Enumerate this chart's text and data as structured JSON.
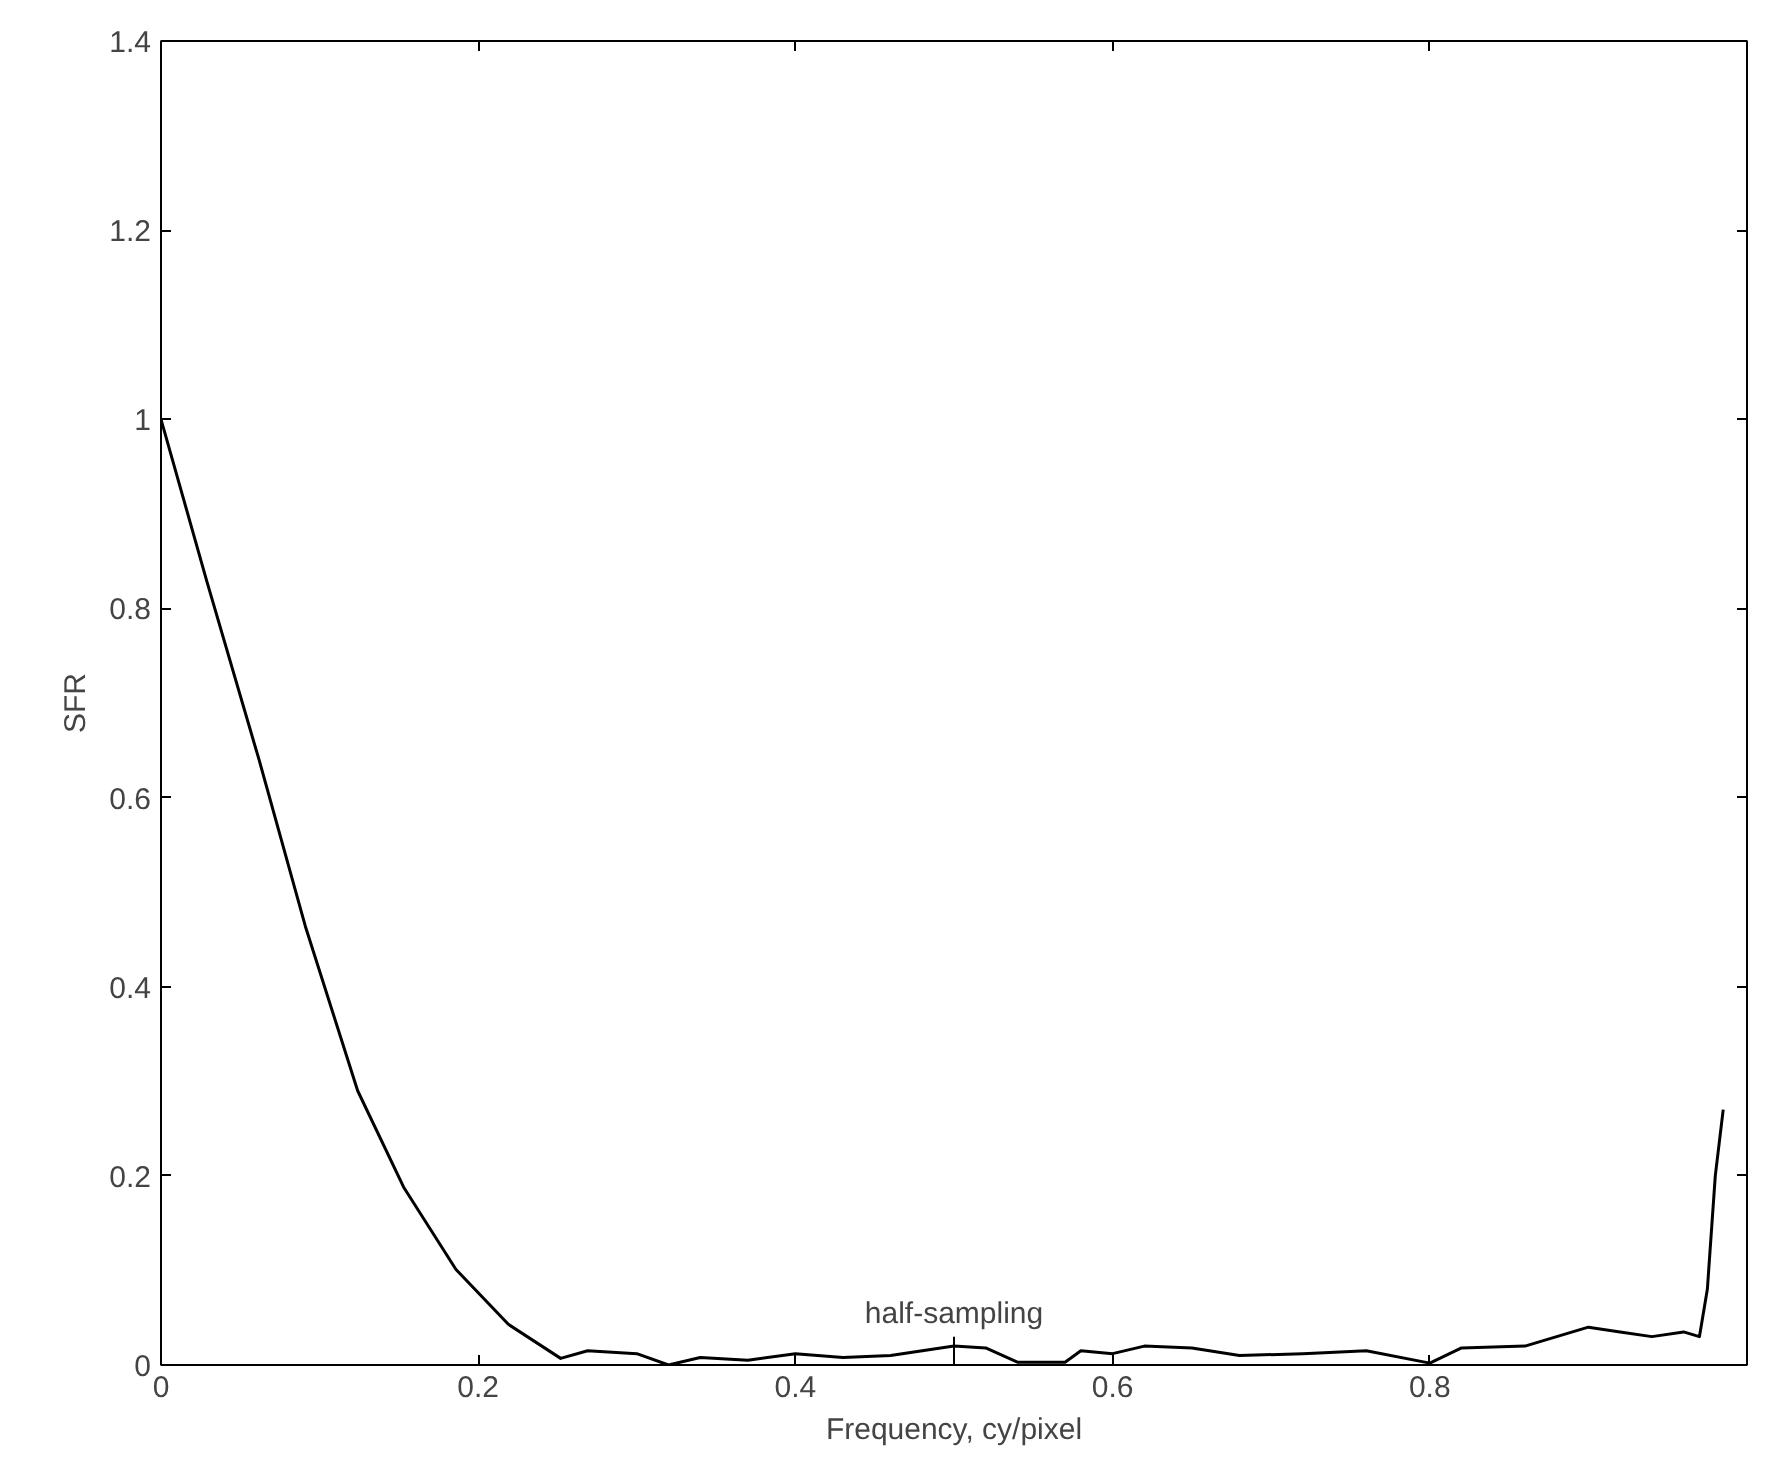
{
  "chart_data": {
    "type": "line",
    "xlabel": "Frequency, cy/pixel",
    "ylabel": "SFR",
    "xlim": [
      0,
      1
    ],
    "ylim": [
      0,
      1.4
    ],
    "xticks": [
      0,
      0.2,
      0.4,
      0.6,
      0.8,
      {
        "value": 1,
        "label": null
      }
    ],
    "yticks": [
      0,
      0.2,
      0.4,
      0.6,
      0.8,
      1,
      1.2,
      1.4
    ],
    "grid": false,
    "marker": "none",
    "line_style": "solid",
    "annotations": [
      {
        "text": "half-sampling",
        "x": 0.5,
        "y": 0.03
      }
    ],
    "series": [
      {
        "color": "#000000",
        "x": [
          0,
          0.029,
          0.062,
          0.091,
          0.124,
          0.153,
          0.186,
          0.219,
          0.252,
          0.269,
          0.3,
          0.32,
          0.34,
          0.37,
          0.4,
          0.43,
          0.46,
          0.5,
          0.52,
          0.54,
          0.57,
          0.58,
          0.6,
          0.62,
          0.65,
          0.68,
          0.72,
          0.76,
          0.8,
          0.82,
          0.86,
          0.88,
          0.9,
          0.92,
          0.94,
          0.96,
          0.97,
          0.975,
          0.98,
          0.985
        ],
        "values": [
          1.0,
          0.828,
          0.639,
          0.464,
          0.29,
          0.188,
          0.101,
          0.043,
          0.007,
          0.015,
          0.012,
          0.0,
          0.008,
          0.005,
          0.012,
          0.008,
          0.01,
          0.02,
          0.018,
          0.003,
          0.003,
          0.015,
          0.012,
          0.02,
          0.018,
          0.01,
          0.012,
          0.015,
          0.002,
          0.018,
          0.02,
          0.03,
          0.04,
          0.035,
          0.03,
          0.035,
          0.03,
          0.08,
          0.2,
          0.27
        ]
      }
    ]
  }
}
